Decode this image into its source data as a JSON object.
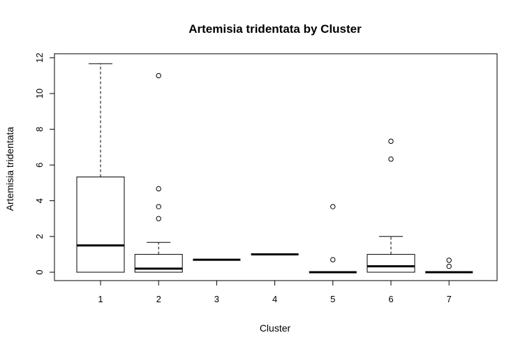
{
  "chart_data": {
    "type": "boxplot",
    "title": "Artemisia tridentata  by Cluster",
    "xlabel": "Cluster",
    "ylabel": "Artemisia tridentata",
    "categories": [
      "1",
      "2",
      "3",
      "4",
      "5",
      "6",
      "7"
    ],
    "ylim": [
      0,
      12
    ],
    "yticks": [
      "0",
      "2",
      "4",
      "6",
      "8",
      "10",
      "12"
    ],
    "grid": false,
    "boxes": [
      {
        "q1": 0,
        "median": 1.5,
        "q3": 5.33,
        "whisker_low": 0,
        "whisker_high": 11.67,
        "outliers": []
      },
      {
        "q1": 0,
        "median": 0.2,
        "q3": 1.0,
        "whisker_low": 0,
        "whisker_high": 1.67,
        "outliers": [
          3.0,
          3.67,
          4.67,
          11.0
        ]
      },
      {
        "q1": 0.7,
        "median": 0.7,
        "q3": 0.7,
        "whisker_low": 0.7,
        "whisker_high": 0.7,
        "outliers": []
      },
      {
        "q1": 1.0,
        "median": 1.0,
        "q3": 1.0,
        "whisker_low": 1.0,
        "whisker_high": 1.0,
        "outliers": []
      },
      {
        "q1": 0,
        "median": 0,
        "q3": 0,
        "whisker_low": 0,
        "whisker_high": 0,
        "outliers": [
          0.7,
          3.67
        ]
      },
      {
        "q1": 0,
        "median": 0.33,
        "q3": 1.0,
        "whisker_low": 0,
        "whisker_high": 2.0,
        "outliers": [
          6.33,
          7.33
        ]
      },
      {
        "q1": 0,
        "median": 0,
        "q3": 0,
        "whisker_low": 0,
        "whisker_high": 0,
        "outliers": [
          0.33,
          0.67
        ]
      }
    ]
  }
}
